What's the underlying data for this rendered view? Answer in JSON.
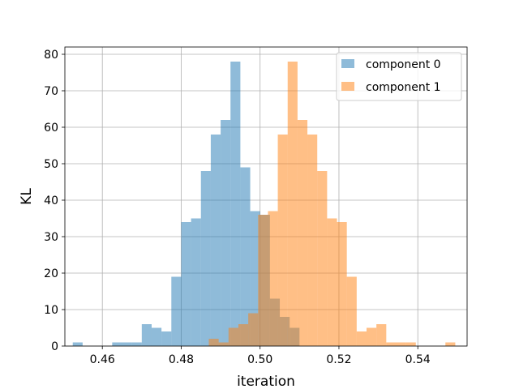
{
  "chart_data": {
    "type": "histogram",
    "title": "",
    "xlabel": "iteration",
    "ylabel": "KL",
    "xlim": [
      0.4505,
      0.5525
    ],
    "ylim": [
      0,
      82
    ],
    "xticks": [
      0.46,
      0.48,
      0.5,
      0.52,
      0.54
    ],
    "xtick_labels": [
      "0.46",
      "0.48",
      "0.50",
      "0.52",
      "0.54"
    ],
    "yticks": [
      0,
      10,
      20,
      30,
      40,
      50,
      60,
      70,
      80
    ],
    "ytick_labels": [
      "0",
      "10",
      "20",
      "30",
      "40",
      "50",
      "60",
      "70",
      "80"
    ],
    "grid": true,
    "legend_position": "top-right",
    "series": [
      {
        "name": "component 0",
        "color": "#1f77b4",
        "alpha": 0.5,
        "bins": [
          [
            0.4525,
            0.455,
            1
          ],
          [
            0.455,
            0.4575,
            0
          ],
          [
            0.4575,
            0.46,
            0
          ],
          [
            0.46,
            0.4625,
            0
          ],
          [
            0.4625,
            0.465,
            1
          ],
          [
            0.465,
            0.4675,
            1
          ],
          [
            0.4675,
            0.47,
            1
          ],
          [
            0.47,
            0.4725,
            6
          ],
          [
            0.4725,
            0.475,
            5
          ],
          [
            0.475,
            0.4775,
            4
          ],
          [
            0.4775,
            0.48,
            19
          ],
          [
            0.48,
            0.4825,
            34
          ],
          [
            0.4825,
            0.485,
            35
          ],
          [
            0.485,
            0.4875,
            48
          ],
          [
            0.4875,
            0.49,
            58
          ],
          [
            0.49,
            0.4925,
            62
          ],
          [
            0.4925,
            0.495,
            78
          ],
          [
            0.495,
            0.4975,
            49
          ],
          [
            0.4975,
            0.5,
            37
          ],
          [
            0.5,
            0.5025,
            36
          ],
          [
            0.5025,
            0.505,
            13
          ],
          [
            0.505,
            0.5075,
            8
          ],
          [
            0.5075,
            0.51,
            5
          ]
        ]
      },
      {
        "name": "component 1",
        "color": "#ff7f0e",
        "alpha": 0.5,
        "bins": [
          [
            0.487,
            0.4895,
            2
          ],
          [
            0.4895,
            0.492,
            1
          ],
          [
            0.492,
            0.4945,
            5
          ],
          [
            0.4945,
            0.497,
            6
          ],
          [
            0.497,
            0.4995,
            9
          ],
          [
            0.4995,
            0.502,
            36
          ],
          [
            0.502,
            0.5045,
            37
          ],
          [
            0.5045,
            0.507,
            58
          ],
          [
            0.507,
            0.5095,
            78
          ],
          [
            0.5095,
            0.512,
            62
          ],
          [
            0.512,
            0.5145,
            58
          ],
          [
            0.5145,
            0.517,
            48
          ],
          [
            0.517,
            0.5195,
            35
          ],
          [
            0.5195,
            0.522,
            34
          ],
          [
            0.522,
            0.5245,
            19
          ],
          [
            0.5245,
            0.527,
            4
          ],
          [
            0.527,
            0.5295,
            5
          ],
          [
            0.5295,
            0.532,
            6
          ],
          [
            0.532,
            0.5345,
            1
          ],
          [
            0.5345,
            0.537,
            1
          ],
          [
            0.537,
            0.5395,
            1
          ],
          [
            0.5395,
            0.542,
            0
          ],
          [
            0.542,
            0.5445,
            0
          ],
          [
            0.5445,
            0.547,
            0
          ],
          [
            0.547,
            0.5495,
            1
          ]
        ]
      }
    ]
  }
}
